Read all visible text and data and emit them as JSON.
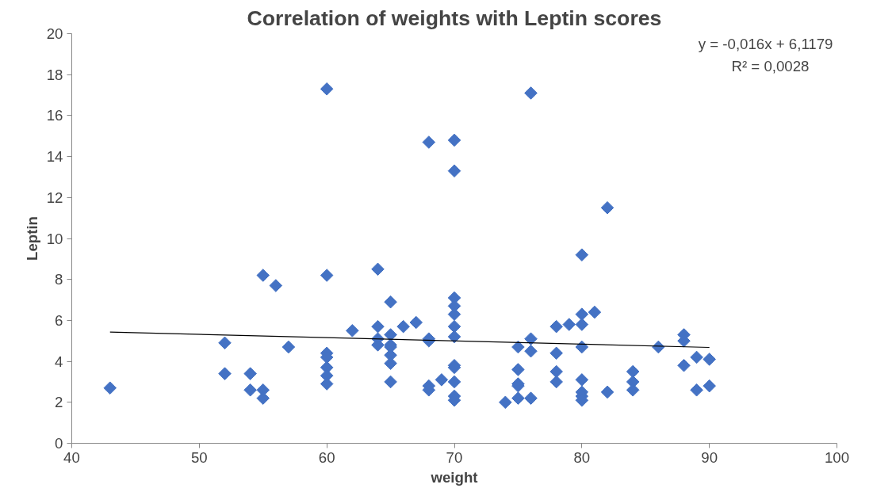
{
  "chart_data": {
    "type": "scatter",
    "title": "Correlation of weights with Leptin scores",
    "xlabel": "weight",
    "ylabel": "Leptin",
    "xlim": [
      40,
      100
    ],
    "xticks": [
      40,
      50,
      60,
      70,
      80,
      90,
      100
    ],
    "ylim": [
      0,
      20
    ],
    "yticks": [
      0,
      2,
      4,
      6,
      8,
      10,
      12,
      14,
      16,
      18,
      20
    ],
    "grid": false,
    "annotations": [
      "y = -0,016x + 6,1179",
      "R² = 0,0028"
    ],
    "series": [
      {
        "color": "#4472c4",
        "marker": "diamond",
        "x": [
          43,
          52,
          52,
          54,
          54,
          55,
          55,
          55,
          56,
          57,
          60,
          60,
          60,
          60,
          60,
          60,
          60,
          62,
          64,
          64,
          64,
          64,
          65,
          65,
          65,
          65,
          65,
          65,
          65,
          66,
          67,
          68,
          68,
          68,
          68,
          68,
          69,
          70,
          70,
          70,
          70,
          70,
          70,
          70,
          70,
          70,
          70,
          70,
          70,
          74,
          75,
          75,
          75,
          75,
          75,
          76,
          76,
          76,
          76,
          78,
          78,
          78,
          78,
          79,
          80,
          80,
          80,
          80,
          80,
          80,
          80,
          80,
          81,
          82,
          82,
          84,
          84,
          84,
          86,
          88,
          88,
          88,
          89,
          89,
          90,
          90
        ],
        "values": [
          2.7,
          4.9,
          3.4,
          3.4,
          2.6,
          8.2,
          2.6,
          2.2,
          7.7,
          4.7,
          17.3,
          8.2,
          4.4,
          4.2,
          3.7,
          3.3,
          2.9,
          5.5,
          8.5,
          5.7,
          5.1,
          4.8,
          6.9,
          5.3,
          4.8,
          4.7,
          4.3,
          3.9,
          3.0,
          5.7,
          5.9,
          14.7,
          5.1,
          5.0,
          2.8,
          2.6,
          3.1,
          14.8,
          13.3,
          7.1,
          6.7,
          6.3,
          5.7,
          5.2,
          3.8,
          3.7,
          3.0,
          2.3,
          2.1,
          2.0,
          4.7,
          3.6,
          2.9,
          2.8,
          2.2,
          17.1,
          5.1,
          4.5,
          2.2,
          5.7,
          4.4,
          3.5,
          3.0,
          5.8,
          9.2,
          6.3,
          5.8,
          4.7,
          3.1,
          2.5,
          2.3,
          2.1,
          6.4,
          11.5,
          2.5,
          3.5,
          3.0,
          2.6,
          4.7,
          5.3,
          5.0,
          3.8,
          4.2,
          2.6,
          4.1,
          2.8
        ]
      },
      {
        "type": "line",
        "color": "#000000",
        "marker": "none",
        "line_style": "solid",
        "x": [
          43,
          90
        ],
        "values": [
          5.43,
          4.68
        ]
      }
    ]
  }
}
